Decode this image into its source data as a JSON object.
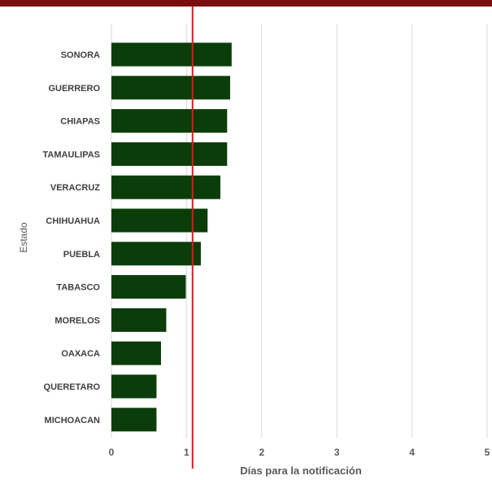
{
  "chart_data": {
    "type": "bar",
    "orientation": "horizontal",
    "categories": [
      "SONORA",
      "GUERRERO",
      "CHIAPAS",
      "TAMAULIPAS",
      "VERACRUZ",
      "CHIHUAHUA",
      "PUEBLA",
      "TABASCO",
      "MORELOS",
      "OAXACA",
      "QUERETARO",
      "MICHOACAN"
    ],
    "values": [
      1.6,
      1.58,
      1.54,
      1.54,
      1.45,
      1.28,
      1.19,
      0.99,
      0.73,
      0.66,
      0.6,
      0.6
    ],
    "xlabel": "Días para la notificación",
    "ylabel": "Estado",
    "xlim": [
      0,
      5
    ],
    "xticks": [
      "0",
      "1",
      "2",
      "3",
      "4",
      "5"
    ],
    "grid": "vertical",
    "reference_line": {
      "value": 1.08,
      "color": "#e8141c"
    },
    "colors": {
      "bar": "#0b3d0b",
      "header": "#7a0e0e",
      "grid": "#d9d9d9"
    }
  }
}
